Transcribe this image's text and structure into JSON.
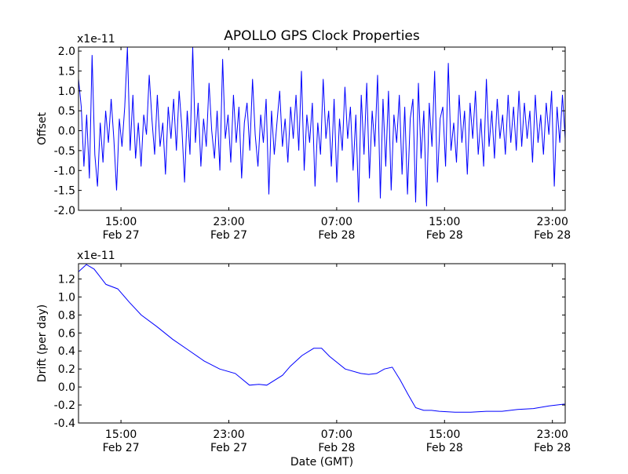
{
  "chart_data": [
    {
      "type": "line",
      "title": "APOLLO GPS Clock Properties",
      "ylabel": "Offset",
      "xlabel": "",
      "scale_label": "x1e-11",
      "color": "#0000ff",
      "xlim_hours": [
        11.85,
        47.95
      ],
      "ylim": [
        -2.0,
        2.1
      ],
      "yticks": [
        -2.0,
        -1.5,
        -1.0,
        -0.5,
        0.0,
        0.5,
        1.0,
        1.5,
        2.0
      ],
      "ytick_labels": [
        "-2.0",
        "-1.5",
        "-1.0",
        "-0.5",
        "0.0",
        "0.5",
        "1.0",
        "1.5",
        "2.0"
      ],
      "xticks_hours": [
        15,
        23,
        31,
        39,
        47
      ],
      "xtick_labels": [
        [
          "15:00",
          "Feb 27"
        ],
        [
          "23:00",
          "Feb 27"
        ],
        [
          "07:00",
          "Feb 28"
        ],
        [
          "15:00",
          "Feb 28"
        ],
        [
          "23:00",
          "Feb 28"
        ]
      ],
      "values": [
        1.3,
        0.6,
        -0.9,
        0.4,
        -1.2,
        1.9,
        -0.6,
        -1.4,
        0.2,
        -0.8,
        0.5,
        -0.3,
        0.8,
        -0.2,
        -1.5,
        0.3,
        -0.4,
        0.6,
        2.1,
        -0.5,
        0.9,
        -0.7,
        0.2,
        -0.9,
        0.4,
        -0.1,
        1.4,
        0.3,
        -0.6,
        0.9,
        -0.4,
        0.2,
        -1.1,
        0.6,
        -0.2,
        0.8,
        -0.5,
        1.0,
        0.1,
        -1.3,
        0.5,
        -0.6,
        2.1,
        -0.3,
        0.7,
        -0.9,
        0.3,
        -0.4,
        1.2,
        0.0,
        -0.7,
        0.5,
        -1.0,
        1.8,
        -0.2,
        0.4,
        -0.8,
        0.9,
        -0.3,
        0.6,
        -1.2,
        0.2,
        0.7,
        -0.5,
        1.3,
        -0.1,
        -0.9,
        0.4,
        -0.3,
        0.8,
        -1.6,
        0.5,
        -0.6,
        0.2,
        1.0,
        -0.4,
        0.3,
        -0.8,
        0.6,
        -0.2,
        0.9,
        -0.5,
        1.5,
        -1.0,
        0.4,
        -0.3,
        0.7,
        -1.4,
        0.2,
        -0.6,
        1.3,
        -0.2,
        0.5,
        -0.9,
        0.8,
        -1.3,
        0.3,
        -0.5,
        1.1,
        -0.2,
        0.6,
        -1.0,
        0.4,
        -1.8,
        0.9,
        -0.6,
        1.2,
        -1.2,
        0.5,
        -0.4,
        1.4,
        -1.7,
        0.8,
        -0.9,
        1.0,
        -1.5,
        0.4,
        -0.3,
        0.9,
        -1.1,
        0.6,
        -1.6,
        0.3,
        0.8,
        -1.8,
        1.2,
        -0.7,
        0.5,
        -1.9,
        0.7,
        -0.4,
        1.5,
        -1.3,
        0.3,
        0.6,
        -0.9,
        1.7,
        -0.5,
        0.2,
        -0.8,
        0.9,
        -0.3,
        0.5,
        -1.1,
        0.7,
        -0.2,
        1.0,
        -0.6,
        0.3,
        -0.9,
        1.3,
        -0.4,
        0.5,
        -0.7,
        0.8,
        -0.2,
        0.4,
        -0.6,
        0.9,
        -0.3,
        0.6,
        -0.5,
        1.0,
        -0.4,
        0.7,
        -0.2,
        0.5,
        -0.8,
        0.9,
        -0.3,
        0.4,
        -0.6,
        0.7,
        -0.1,
        1.0,
        -1.4,
        0.6,
        -0.3,
        0.9,
        -0.2
      ]
    },
    {
      "type": "line",
      "title": "",
      "ylabel": "Drift (per day)",
      "xlabel": "Date (GMT)",
      "scale_label": "x1e-11",
      "color": "#0000ff",
      "xlim_hours": [
        11.85,
        47.95
      ],
      "ylim": [
        -0.4,
        1.37
      ],
      "yticks": [
        -0.4,
        -0.2,
        0.0,
        0.2,
        0.4,
        0.6,
        0.8,
        1.0,
        1.2
      ],
      "ytick_labels": [
        "-0.4",
        "-0.2",
        "0.0",
        "0.2",
        "0.4",
        "0.6",
        "0.8",
        "1.0",
        "1.2"
      ],
      "xticks_hours": [
        15,
        23,
        31,
        39,
        47
      ],
      "xtick_labels": [
        [
          "15:00",
          "Feb 27"
        ],
        [
          "23:00",
          "Feb 27"
        ],
        [
          "07:00",
          "Feb 28"
        ],
        [
          "15:00",
          "Feb 28"
        ],
        [
          "23:00",
          "Feb 28"
        ]
      ],
      "x_hours": [
        11.85,
        12.43,
        13.01,
        13.89,
        14.76,
        15.63,
        16.5,
        17.67,
        18.83,
        20.0,
        21.16,
        22.32,
        23.48,
        24.53,
        25.23,
        25.81,
        26.98,
        27.56,
        28.43,
        29.3,
        29.88,
        30.47,
        31.63,
        32.79,
        33.37,
        33.96,
        34.54,
        35.12,
        35.7,
        36.28,
        36.86,
        37.45,
        38.03,
        38.61,
        39.77,
        40.94,
        42.1,
        43.26,
        44.43,
        45.59,
        46.75,
        47.91
      ],
      "values": [
        1.28,
        1.36,
        1.31,
        1.14,
        1.09,
        0.94,
        0.8,
        0.67,
        0.53,
        0.41,
        0.29,
        0.2,
        0.15,
        0.02,
        0.03,
        0.02,
        0.13,
        0.23,
        0.35,
        0.43,
        0.43,
        0.34,
        0.2,
        0.15,
        0.14,
        0.15,
        0.2,
        0.22,
        0.08,
        -0.08,
        -0.23,
        -0.26,
        -0.26,
        -0.27,
        -0.28,
        -0.28,
        -0.27,
        -0.27,
        -0.25,
        -0.24,
        -0.21,
        -0.19
      ]
    }
  ]
}
